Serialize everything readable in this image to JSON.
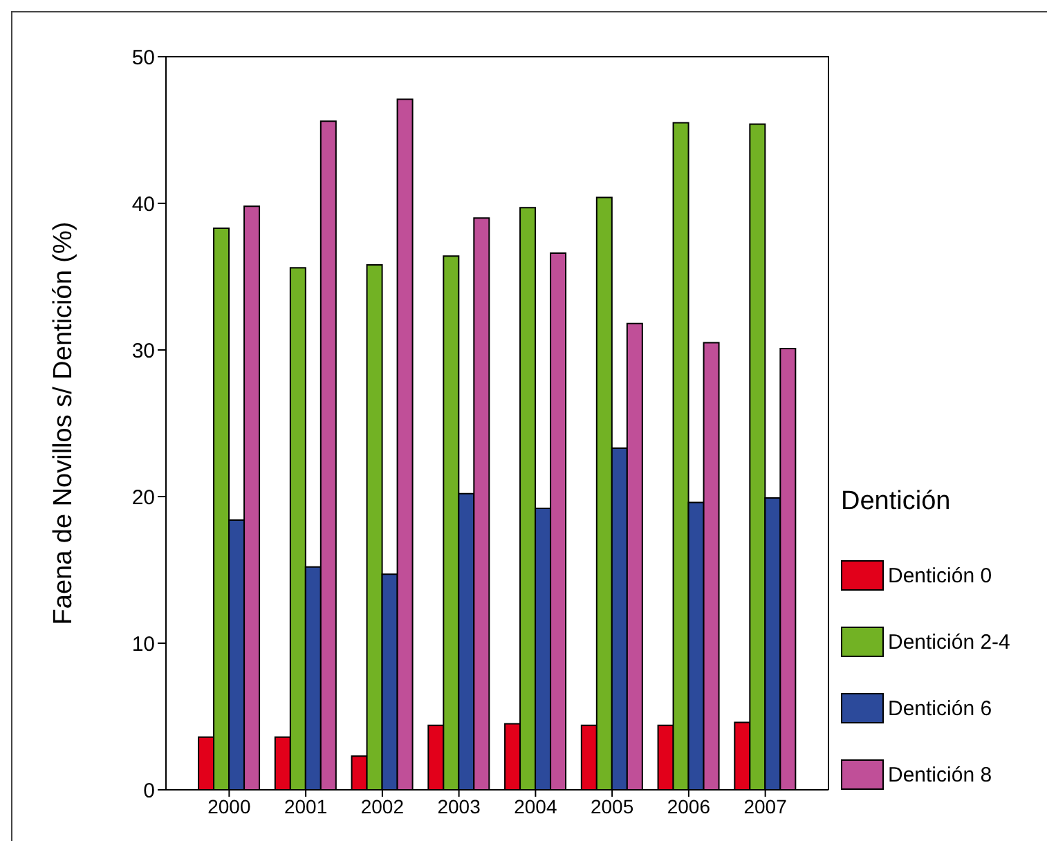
{
  "chart_data": {
    "type": "bar",
    "ylabel": "Faena de Novillos s/ Dentición (%)",
    "legend_title": "Dentición",
    "categories": [
      "2000",
      "2001",
      "2002",
      "2003",
      "2004",
      "2005",
      "2006",
      "2007"
    ],
    "series": [
      {
        "name": "Dentición 0",
        "color": "#e2001a",
        "values": [
          3.6,
          3.6,
          2.3,
          4.4,
          4.5,
          4.4,
          4.4,
          4.6
        ]
      },
      {
        "name": "Dentición 2-4",
        "color": "#72b224",
        "values": [
          38.3,
          35.6,
          35.8,
          36.4,
          39.7,
          40.4,
          45.5,
          45.4
        ]
      },
      {
        "name": "Dentición 6",
        "color": "#2c4a9b",
        "values": [
          18.4,
          15.2,
          14.7,
          20.2,
          19.2,
          23.3,
          19.6,
          19.9
        ]
      },
      {
        "name": "Dentición 8",
        "color": "#c04f98",
        "values": [
          39.8,
          45.6,
          47.1,
          39.0,
          36.6,
          31.8,
          30.5,
          30.1
        ]
      }
    ],
    "ylim": [
      0,
      50
    ],
    "yticks": [
      0,
      10,
      20,
      30,
      40,
      50
    ],
    "grid": false,
    "legend": "right"
  }
}
